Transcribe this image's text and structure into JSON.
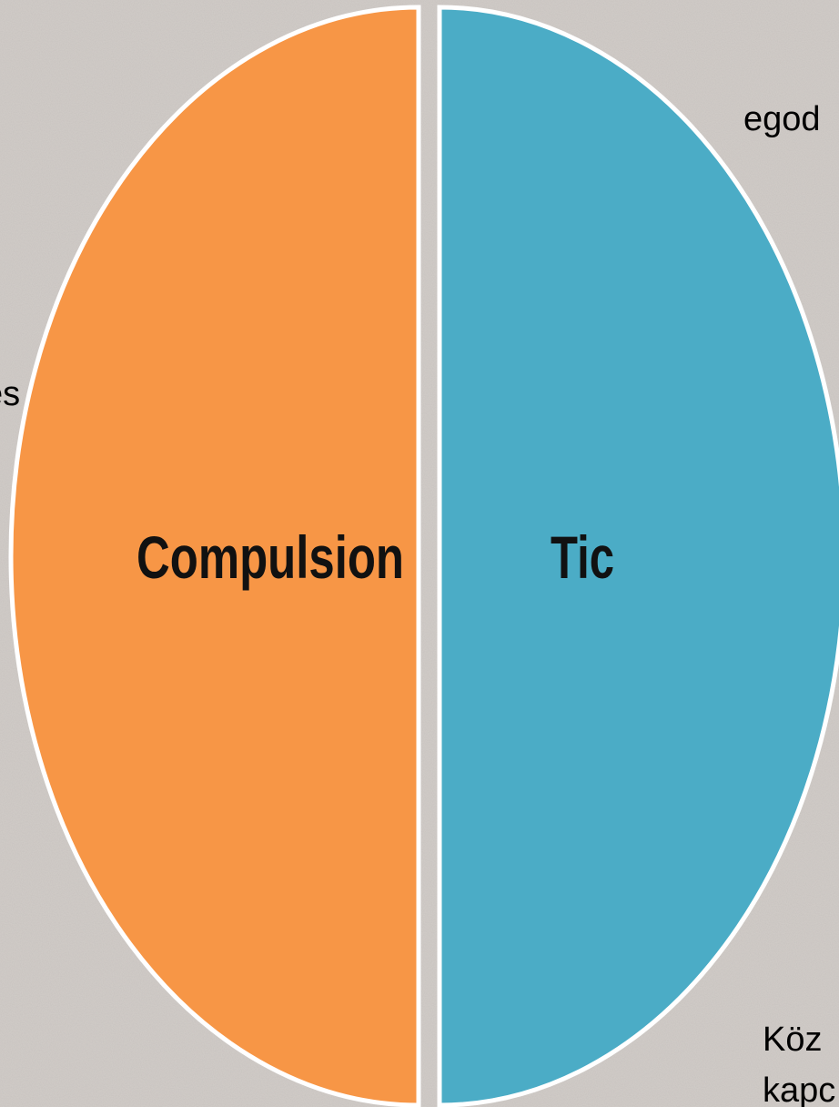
{
  "labels": {
    "left": "Compulsion",
    "right": "Tic"
  },
  "fragments": [
    "egod",
    "és",
    "Köz",
    "kapc"
  ]
}
